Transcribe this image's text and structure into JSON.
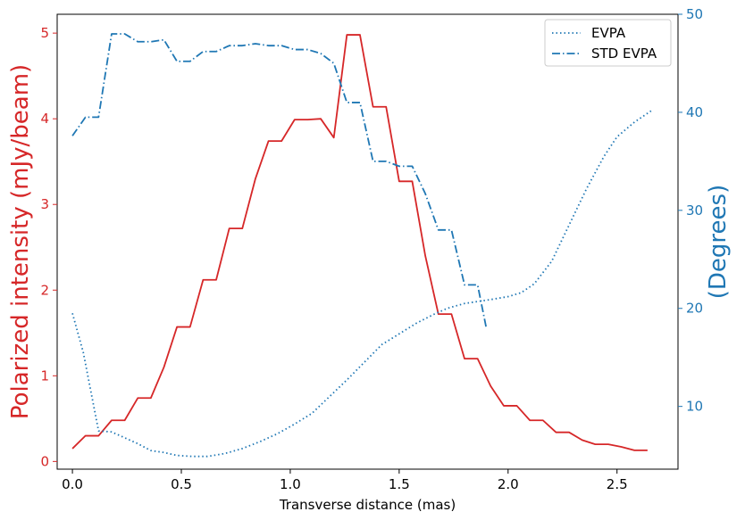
{
  "chart_data": {
    "type": "line",
    "xlabel": "Transverse distance (mas)",
    "ylabel_left": "Polarized intensity (mJy/beam)",
    "ylabel_right": "(Degrees)",
    "x_ticks": [
      "0.0",
      "0.5",
      "1.0",
      "1.5",
      "2.0",
      "2.5"
    ],
    "y_left_ticks": [
      "0",
      "1",
      "2",
      "3",
      "4",
      "5"
    ],
    "y_right_ticks": [
      "10",
      "20",
      "30",
      "40",
      "50"
    ],
    "xlim": [
      -0.07,
      2.78
    ],
    "ylim_left": [
      -0.09,
      5.22
    ],
    "ylim_right": [
      3.6,
      50
    ],
    "legend_position": "upper-right",
    "colors": {
      "left_axis": "#d62728",
      "right_axis": "#1f77b4",
      "axes": "#000000"
    },
    "series": [
      {
        "name": "",
        "axis": "left",
        "style": "solid",
        "color": "#d62728",
        "x": [
          0.0,
          0.06,
          0.12,
          0.18,
          0.24,
          0.3,
          0.36,
          0.42,
          0.48,
          0.54,
          0.6,
          0.66,
          0.72,
          0.78,
          0.84,
          0.9,
          0.96,
          1.02,
          1.08,
          1.14,
          1.2,
          1.26,
          1.32,
          1.38,
          1.44,
          1.5,
          1.56,
          1.62,
          1.68,
          1.74,
          1.8,
          1.86,
          1.92,
          1.98,
          2.04,
          2.1,
          2.16,
          2.22,
          2.28,
          2.34,
          2.4,
          2.46,
          2.52,
          2.58,
          2.64
        ],
        "values": [
          0.15,
          0.3,
          0.3,
          0.48,
          0.48,
          0.74,
          0.74,
          1.1,
          1.57,
          1.57,
          2.12,
          2.12,
          2.72,
          2.72,
          3.3,
          3.74,
          3.74,
          3.99,
          3.99,
          4.0,
          3.78,
          4.98,
          4.98,
          4.14,
          4.14,
          3.27,
          3.27,
          2.4,
          1.72,
          1.72,
          1.2,
          1.2,
          0.88,
          0.65,
          0.65,
          0.48,
          0.48,
          0.34,
          0.34,
          0.25,
          0.2,
          0.2,
          0.17,
          0.13,
          0.13
        ]
      },
      {
        "name": "EVPA",
        "axis": "right",
        "style": "dotted",
        "color": "#1f77b4",
        "x": [
          0.0,
          0.05,
          0.12,
          0.18,
          0.24,
          0.3,
          0.36,
          0.42,
          0.48,
          0.55,
          0.62,
          0.7,
          0.78,
          0.86,
          0.94,
          1.02,
          1.1,
          1.18,
          1.26,
          1.34,
          1.42,
          1.5,
          1.58,
          1.66,
          1.72,
          1.8,
          1.86,
          1.92,
          2.0,
          2.06,
          2.12,
          2.2,
          2.28,
          2.36,
          2.44,
          2.5,
          2.58,
          2.66
        ],
        "values": [
          19.5,
          15.5,
          7.5,
          7.4,
          6.8,
          6.2,
          5.5,
          5.3,
          5.0,
          4.9,
          4.9,
          5.2,
          5.7,
          6.4,
          7.2,
          8.2,
          9.3,
          11.0,
          12.7,
          14.5,
          16.3,
          17.4,
          18.5,
          19.4,
          20.0,
          20.5,
          20.7,
          20.9,
          21.2,
          21.6,
          22.5,
          24.8,
          28.5,
          32.2,
          35.5,
          37.5,
          39.0,
          40.2
        ]
      },
      {
        "name": "STD EVPA",
        "axis": "right",
        "style": "dashdot",
        "color": "#1f77b4",
        "x": [
          0.0,
          0.06,
          0.12,
          0.18,
          0.24,
          0.3,
          0.36,
          0.42,
          0.48,
          0.54,
          0.6,
          0.66,
          0.72,
          0.78,
          0.84,
          0.9,
          0.96,
          1.02,
          1.08,
          1.14,
          1.2,
          1.26,
          1.32,
          1.38,
          1.44,
          1.5,
          1.56,
          1.62,
          1.68,
          1.74,
          1.8,
          1.86,
          1.9
        ],
        "values": [
          37.6,
          39.5,
          39.5,
          48.0,
          48.0,
          47.2,
          47.2,
          47.4,
          45.2,
          45.2,
          46.2,
          46.2,
          46.8,
          46.8,
          47.0,
          46.8,
          46.8,
          46.4,
          46.4,
          46.0,
          45.0,
          41.0,
          41.0,
          35.0,
          35.0,
          34.5,
          34.5,
          31.7,
          28.0,
          28.0,
          22.4,
          22.4,
          18.0
        ]
      }
    ]
  }
}
